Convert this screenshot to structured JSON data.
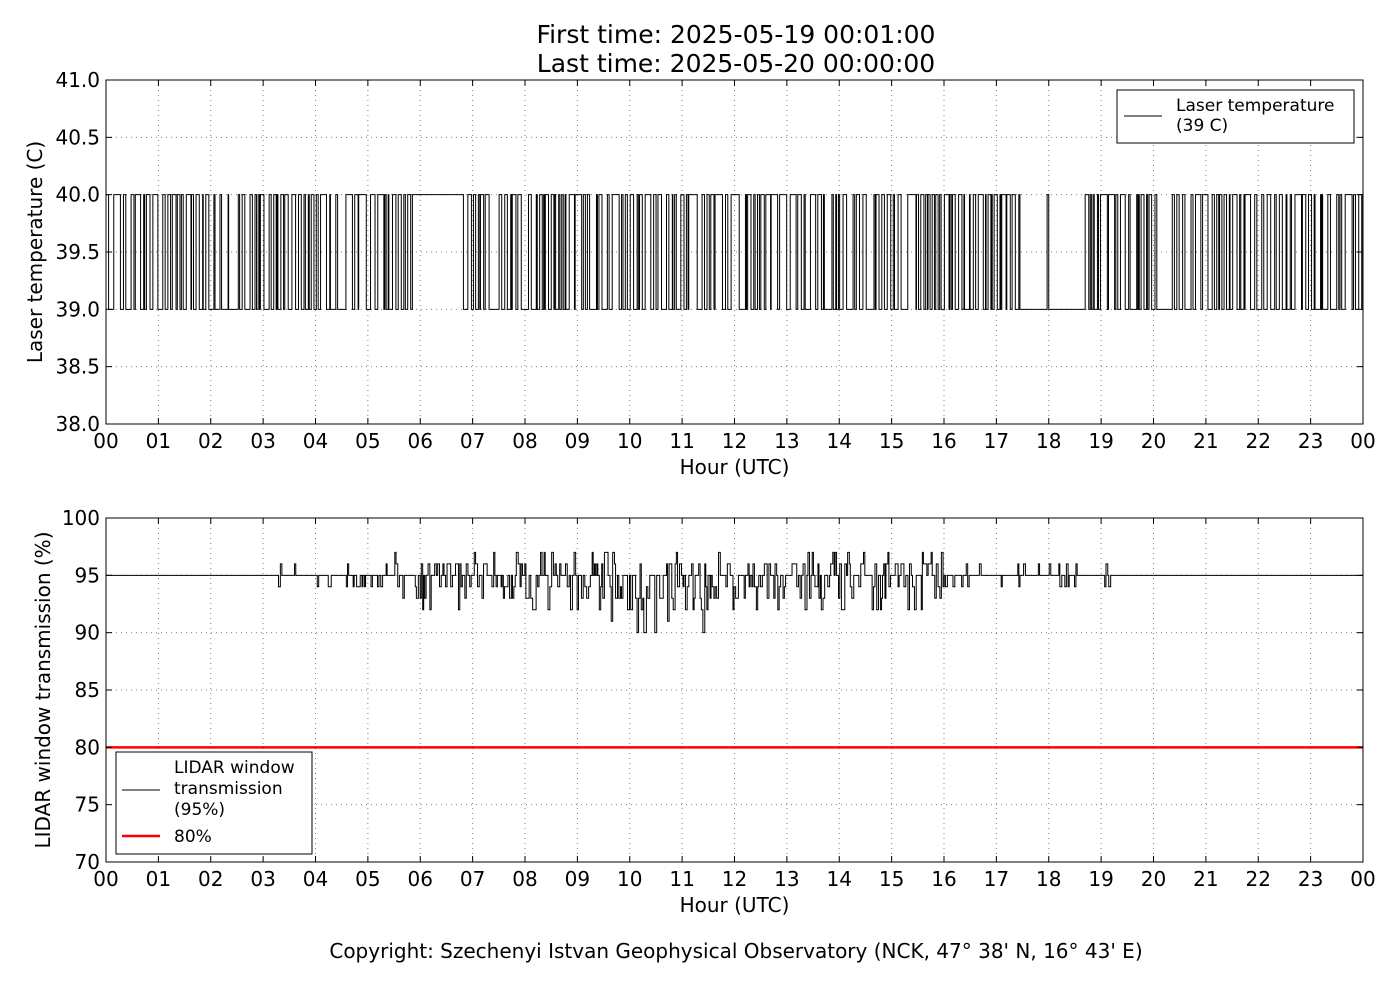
{
  "header": {
    "title_line1": "First time: 2025-05-19 00:01:00",
    "title_line2": "Last time: 2025-05-20 00:00:00"
  },
  "footer": {
    "copyright": "Copyright: Szechenyi Istvan Geophysical Observatory (NCK, 47° 38' N, 16° 43' E)"
  },
  "colors": {
    "line": "#000000",
    "threshold": "#ff0000",
    "grid": "#808080"
  },
  "chart_data": [
    {
      "type": "line",
      "ylabel": "Laser temperature (C)",
      "xlabel": "Hour (UTC)",
      "x_ticks": [
        "00",
        "01",
        "02",
        "03",
        "04",
        "05",
        "06",
        "07",
        "08",
        "09",
        "10",
        "11",
        "12",
        "13",
        "14",
        "15",
        "16",
        "17",
        "18",
        "19",
        "20",
        "21",
        "22",
        "23",
        "00"
      ],
      "y_ticks": [
        "38.0",
        "38.5",
        "39.0",
        "39.5",
        "40.0",
        "40.5",
        "41.0"
      ],
      "xlim": [
        0,
        24
      ],
      "ylim": [
        38.0,
        41.0
      ],
      "grid": true,
      "legend_position": "top-right",
      "series": [
        {
          "name": "Laser temperature\n(39 C)",
          "color": "#000000",
          "description": "Oscillates between 39.0 and 40.0 C throughout the day",
          "values_range": [
            39.0,
            40.0
          ],
          "steady_segments_hours": [
            {
              "x": [
                5.85,
                6.3
              ],
              "y": 40.0
            },
            {
              "x": [
                6.3,
                6.55
              ],
              "y": 40.0
            },
            {
              "x": [
                6.55,
                6.8
              ],
              "y": 40.0
            },
            {
              "x": [
                17.45,
                17.95
              ],
              "y": 39.0
            },
            {
              "x": [
                18.0,
                18.62
              ],
              "y": 39.0
            }
          ]
        }
      ]
    },
    {
      "type": "line",
      "ylabel": "LIDAR window transmission (%)",
      "xlabel": "Hour (UTC)",
      "x_ticks": [
        "00",
        "01",
        "02",
        "03",
        "04",
        "05",
        "06",
        "07",
        "08",
        "09",
        "10",
        "11",
        "12",
        "13",
        "14",
        "15",
        "16",
        "17",
        "18",
        "19",
        "20",
        "21",
        "22",
        "23",
        "00"
      ],
      "y_ticks": [
        "70",
        "75",
        "80",
        "85",
        "90",
        "95",
        "100"
      ],
      "xlim": [
        0,
        24
      ],
      "ylim": [
        70,
        100
      ],
      "grid": true,
      "legend_position": "bottom-left",
      "series": [
        {
          "name": "LIDAR window\ntransmission\n(95%)",
          "color": "#000000",
          "baseline": 95,
          "noisy_segment_hours": [
            3.0,
            19.5
          ],
          "min_value": 90,
          "max_value": 97
        },
        {
          "name": "80%",
          "color": "#ff0000",
          "constant": 80
        }
      ]
    }
  ]
}
